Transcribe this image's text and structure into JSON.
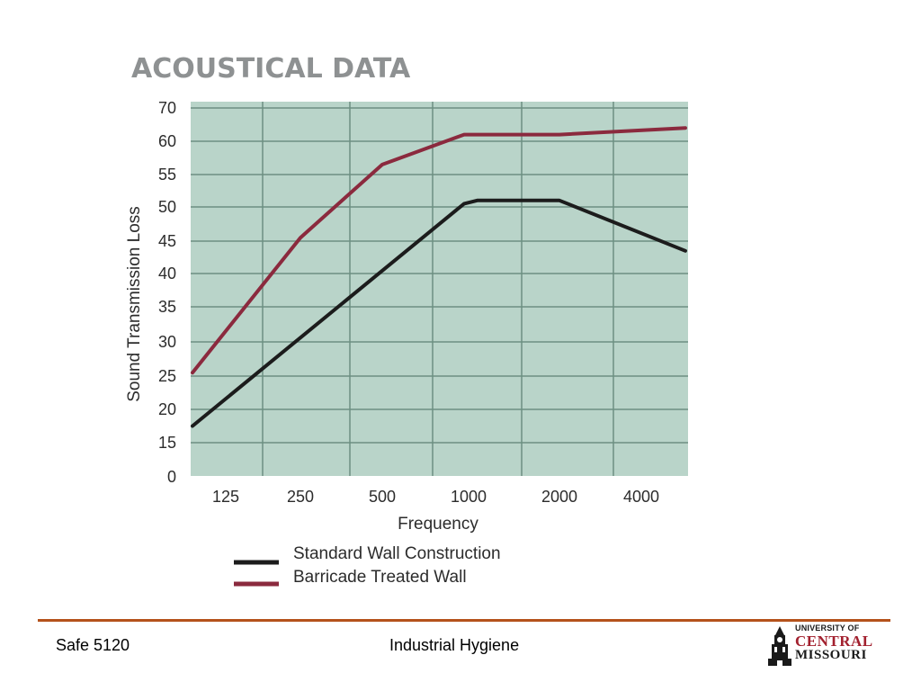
{
  "slide": {
    "footer_left": "Safe 5120",
    "footer_center": "Industrial Hygiene"
  },
  "logo": {
    "line1": "UNIVERSITY OF",
    "line2": "CENTRAL",
    "line3": "MISSOURI",
    "icon": "clock-tower-icon"
  },
  "colors": {
    "plot_bg": "#b9d4c9",
    "grid": "#6d8f82",
    "standard_wall": "#1c1c1c",
    "barricade_wall": "#8b2a3e",
    "title": "#8e9192",
    "footer_rule": "#b5521b",
    "logo_red": "#a2202e"
  },
  "chart_data": {
    "type": "line",
    "title": "ACOUSTICAL DATA",
    "xlabel": "Frequency",
    "ylabel": "Sound Transmission Loss",
    "categories": [
      "125",
      "250",
      "500",
      "1000",
      "2000",
      "4000"
    ],
    "y_ticks": [
      "70",
      "60",
      "55",
      "50",
      "45",
      "40",
      "35",
      "30",
      "25",
      "20",
      "15",
      "0"
    ],
    "grid": true,
    "legend_position": "bottom",
    "series": [
      {
        "name": "Standard Wall Construction",
        "color": "#1c1c1c",
        "x": [
          "100",
          "1000",
          "1100",
          "2000",
          "4500"
        ],
        "y": [
          17.5,
          50.5,
          51,
          51,
          43.5
        ]
      },
      {
        "name": "Barricade Treated Wall",
        "color": "#8b2a3e",
        "x": [
          "100",
          "250",
          "500",
          "1000",
          "2000",
          "4500"
        ],
        "y": [
          25.5,
          45.5,
          56.5,
          62,
          62,
          64
        ]
      }
    ]
  }
}
